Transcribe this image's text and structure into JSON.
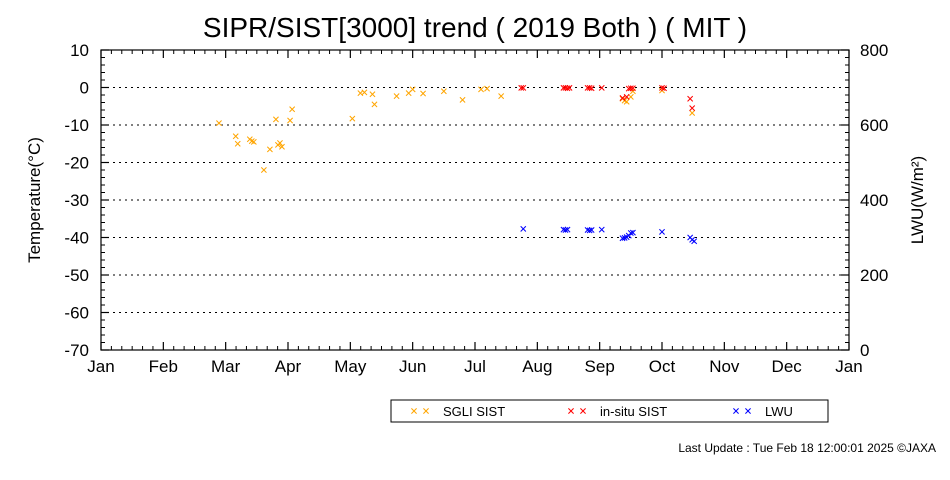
{
  "chart_data": {
    "type": "scatter",
    "title": "SIPR/SIST[3000] trend ( 2019 Both ) ( MIT )",
    "ylabel": "Temperature(°C)",
    "y2label": "LWU(W/m²)",
    "x_axis": {
      "unit": "month",
      "range": [
        1,
        13
      ],
      "tick_labels": [
        "Jan",
        "Feb",
        "Mar",
        "Apr",
        "May",
        "Jun",
        "Jul",
        "Aug",
        "Sep",
        "Oct",
        "Nov",
        "Dec",
        "Jan"
      ]
    },
    "y_axis": {
      "range": [
        -70,
        10
      ],
      "ticks": [
        10,
        0,
        -10,
        -20,
        -30,
        -40,
        -50,
        -60,
        -70
      ]
    },
    "y2_axis": {
      "range": [
        0,
        800
      ],
      "ticks": [
        800,
        600,
        400,
        200,
        0
      ]
    },
    "grid": "dotted horizontal",
    "legend_placement": "bottom-center",
    "series": [
      {
        "name": "SGLI SIST",
        "axis": "left",
        "color": "#FFA500",
        "marker": "x",
        "points": [
          [
            "2019-02-26",
            -9.5
          ],
          [
            "2019-03-06",
            -13
          ],
          [
            "2019-03-07",
            -15
          ],
          [
            "2019-03-13",
            -13.8
          ],
          [
            "2019-03-14",
            -14.3
          ],
          [
            "2019-03-15",
            -14.5
          ],
          [
            "2019-03-20",
            -22
          ],
          [
            "2019-03-23",
            -16.5
          ],
          [
            "2019-03-26",
            -8.5
          ],
          [
            "2019-03-27",
            -15.3
          ],
          [
            "2019-03-28",
            -14.8
          ],
          [
            "2019-03-29",
            -15.8
          ],
          [
            "2019-04-02",
            -8.8
          ],
          [
            "2019-04-03",
            -5.8
          ],
          [
            "2019-05-02",
            -8.3
          ],
          [
            "2019-05-06",
            -1.5
          ],
          [
            "2019-05-08",
            -1.3
          ],
          [
            "2019-05-12",
            -1.8
          ],
          [
            "2019-05-13",
            -4.5
          ],
          [
            "2019-05-24",
            -2.3
          ],
          [
            "2019-05-30",
            -1.5
          ],
          [
            "2019-06-01",
            -0.5
          ],
          [
            "2019-06-06",
            -1.6
          ],
          [
            "2019-06-16",
            -1.0
          ],
          [
            "2019-06-25",
            -3.3
          ],
          [
            "2019-07-04",
            -0.5
          ],
          [
            "2019-07-07",
            -0.3
          ],
          [
            "2019-07-14",
            -2.3
          ],
          [
            "2019-09-12",
            -3.0
          ],
          [
            "2019-09-13",
            -3.5
          ],
          [
            "2019-09-14",
            -3.8
          ],
          [
            "2019-09-16",
            -2.5
          ],
          [
            "2019-09-17",
            -1.0
          ],
          [
            "2019-10-01",
            -0.8
          ],
          [
            "2019-10-16",
            -6.8
          ]
        ]
      },
      {
        "name": "in-situ SIST",
        "axis": "left",
        "color": "#FF0000",
        "marker": "x",
        "points": [
          [
            "2019-07-24",
            -0.1
          ],
          [
            "2019-07-25",
            -0.1
          ],
          [
            "2019-08-14",
            -0.1
          ],
          [
            "2019-08-15",
            -0.1
          ],
          [
            "2019-08-16",
            -0.2
          ],
          [
            "2019-08-17",
            -0.1
          ],
          [
            "2019-08-26",
            -0.1
          ],
          [
            "2019-08-27",
            -0.1
          ],
          [
            "2019-08-28",
            -0.2
          ],
          [
            "2019-09-02",
            -0.1
          ],
          [
            "2019-09-12",
            -2.8
          ],
          [
            "2019-09-14",
            -2.5
          ],
          [
            "2019-09-15",
            -0.3
          ],
          [
            "2019-09-16",
            -0.2
          ],
          [
            "2019-09-17",
            -0.2
          ],
          [
            "2019-10-01",
            -0.1
          ],
          [
            "2019-10-02",
            -0.2
          ],
          [
            "2019-10-15",
            -3.0
          ],
          [
            "2019-10-16",
            -5.5
          ]
        ]
      },
      {
        "name": "LWU",
        "axis": "right",
        "color": "#0000FF",
        "marker": "x",
        "points": [
          [
            "2019-07-25",
            323
          ],
          [
            "2019-08-14",
            321
          ],
          [
            "2019-08-15",
            320
          ],
          [
            "2019-08-16",
            321
          ],
          [
            "2019-08-26",
            320
          ],
          [
            "2019-08-27",
            319
          ],
          [
            "2019-08-28",
            320
          ],
          [
            "2019-09-02",
            321
          ],
          [
            "2019-09-12",
            298
          ],
          [
            "2019-09-13",
            299
          ],
          [
            "2019-09-14",
            301
          ],
          [
            "2019-09-15",
            305
          ],
          [
            "2019-09-16",
            312
          ],
          [
            "2019-09-17",
            313
          ],
          [
            "2019-10-01",
            315
          ],
          [
            "2019-10-15",
            300
          ],
          [
            "2019-10-16",
            294
          ],
          [
            "2019-10-17",
            290
          ]
        ]
      }
    ]
  },
  "footer": {
    "last_update": "Last Update : Tue Feb 18 12:00:01 2025  ©JAXA"
  }
}
